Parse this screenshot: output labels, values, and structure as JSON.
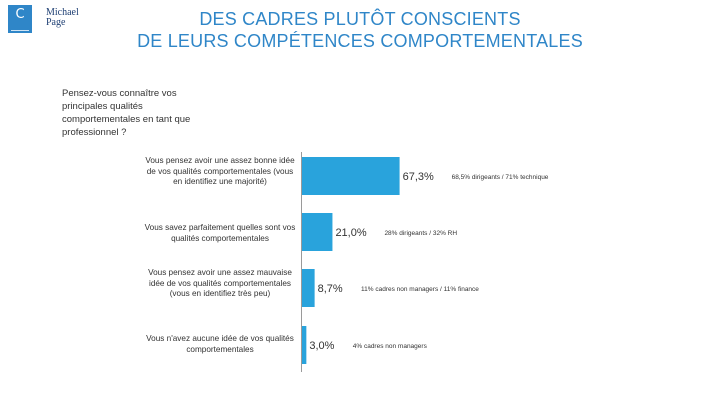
{
  "logo": {
    "letter": "C",
    "brand_line1": "Michael",
    "brand_line2": "Page"
  },
  "title": {
    "line1": "DES CADRES PLUTÔT CONSCIENTS",
    "line2": "DE LEURS COMPÉTENCES COMPORTEMENTALES"
  },
  "question": "Pensez-vous connaître vos principales qualités comportementales en tant que professionnel ?",
  "colors": {
    "accent": "#2f86c8",
    "bar": "#29a3dc"
  },
  "chart_data": {
    "type": "bar",
    "orientation": "horizontal",
    "title": "",
    "categories": [
      "Vous pensez avoir une assez bonne idée de vos qualités comportementales (vous en identifiez une majorité)",
      "Vous savez parfaitement quelles sont vos qualités comportementales",
      "Vous pensez avoir une assez mauvaise idée de vos qualités comportementales (vous en identifiez très peu)",
      "Vous n'avez aucune idée de vos qualités comportementales"
    ],
    "values": [
      67.3,
      21.0,
      8.7,
      3.0
    ],
    "value_labels": [
      "67,3%",
      "21,0%",
      "8,7%",
      "3,0%"
    ],
    "annotations": [
      "68,5% dirigeants / 71% technique",
      "28% dirigeants / 32% RH",
      "11% cadres non managers / 11% finance",
      "4% cadres non managers"
    ],
    "xlim": [
      0,
      100
    ],
    "xlabel": "",
    "ylabel": ""
  }
}
